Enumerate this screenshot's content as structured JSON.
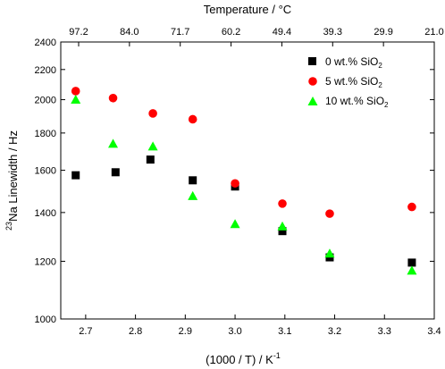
{
  "chart_data": {
    "type": "scatter",
    "xlabel": "(1000 / T) / K",
    "xlabel_sup": "-1",
    "ylabel_sup": "23",
    "ylabel": "Na Linewidth / Hz",
    "top_axis_label": "Temperature / °C",
    "xlim": [
      2.65,
      3.4
    ],
    "ylim": [
      1000,
      2400
    ],
    "y_scale": "log",
    "x_ticks": [
      "2.7",
      "2.8",
      "2.9",
      "3.0",
      "3.1",
      "3.2",
      "3.3",
      "3.4"
    ],
    "x_tick_values": [
      2.7,
      2.8,
      2.9,
      3.0,
      3.1,
      3.2,
      3.3,
      3.4
    ],
    "y_ticks": [
      "1000",
      "1200",
      "1400",
      "1600",
      "1800",
      "2000",
      "2200",
      "2400"
    ],
    "y_tick_values": [
      1000,
      1200,
      1400,
      1600,
      1800,
      2000,
      2200,
      2400
    ],
    "top_ticks": [
      "97.2",
      "84.0",
      "71.7",
      "60.2",
      "49.4",
      "39.3",
      "29.9",
      "21.0"
    ],
    "legend_position": "top-right",
    "series": [
      {
        "name": "0 wt.% SiO",
        "name_sub": "2",
        "marker": "square",
        "color": "#000000",
        "x": [
          2.68,
          2.76,
          2.83,
          2.915,
          3.0,
          3.095,
          3.19,
          3.355
        ],
        "y": [
          1575,
          1590,
          1655,
          1550,
          1520,
          1320,
          1215,
          1195
        ]
      },
      {
        "name": "5 wt.% SiO",
        "name_sub": "2",
        "marker": "circle",
        "color": "#ff0000",
        "x": [
          2.68,
          2.755,
          2.835,
          2.915,
          3.0,
          3.095,
          3.19,
          3.355
        ],
        "y": [
          2055,
          2010,
          1915,
          1880,
          1535,
          1440,
          1395,
          1425
        ]
      },
      {
        "name": "10 wt.% SiO",
        "name_sub": "2",
        "marker": "triangle",
        "color": "#00ff00",
        "x": [
          2.68,
          2.755,
          2.835,
          2.915,
          3.0,
          3.095,
          3.19,
          3.355
        ],
        "y": [
          2000,
          1740,
          1725,
          1475,
          1350,
          1340,
          1230,
          1165
        ]
      }
    ]
  }
}
